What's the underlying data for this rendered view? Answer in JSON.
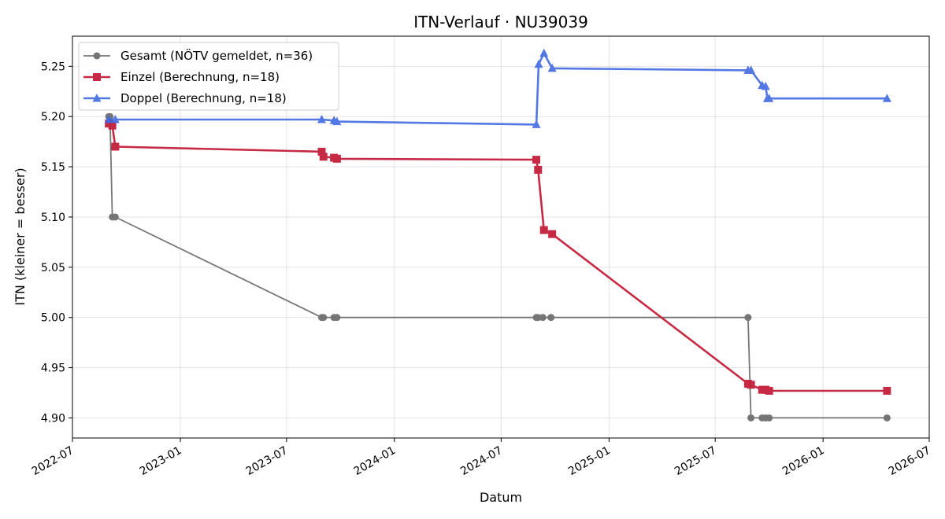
{
  "chart_data": {
    "type": "line",
    "title": "ITN-Verlauf · NU39039",
    "xlabel": "Datum",
    "ylabel": "ITN  (kleiner = besser)",
    "x_type": "date",
    "xlim": [
      "2022-07-01",
      "2026-07-01"
    ],
    "ylim": [
      4.88,
      5.28
    ],
    "x_ticks": [
      "2022-07",
      "2023-01",
      "2023-07",
      "2024-01",
      "2024-07",
      "2025-01",
      "2025-07",
      "2026-01",
      "2026-07"
    ],
    "x_tick_dates": [
      "2022-07-01",
      "2023-01-01",
      "2023-07-01",
      "2024-01-01",
      "2024-07-01",
      "2025-01-01",
      "2025-07-01",
      "2026-01-01",
      "2026-07-01"
    ],
    "y_ticks": [
      4.9,
      4.95,
      5.0,
      5.05,
      5.1,
      5.15,
      5.2,
      5.25
    ],
    "y_tick_labels": [
      "4.90",
      "4.95",
      "5.00",
      "5.05",
      "5.10",
      "5.15",
      "5.20",
      "5.25"
    ],
    "grid": true,
    "legend_position": "top-left",
    "series": [
      {
        "name": "Gesamt (NÖTV gemeldet, n=36)",
        "color": "#555555",
        "marker": "circle",
        "line_width": 1.8,
        "opacity": 0.8,
        "points": [
          {
            "x": "2022-09-01",
            "y": 5.2
          },
          {
            "x": "2022-09-03",
            "y": 5.2
          },
          {
            "x": "2022-09-07",
            "y": 5.1
          },
          {
            "x": "2022-09-12",
            "y": 5.1
          },
          {
            "x": "2023-08-30",
            "y": 5.0
          },
          {
            "x": "2023-09-02",
            "y": 5.0
          },
          {
            "x": "2023-09-20",
            "y": 5.0
          },
          {
            "x": "2023-09-25",
            "y": 5.0
          },
          {
            "x": "2024-08-30",
            "y": 5.0
          },
          {
            "x": "2024-09-02",
            "y": 5.0
          },
          {
            "x": "2024-09-10",
            "y": 5.0
          },
          {
            "x": "2024-09-24",
            "y": 5.0
          },
          {
            "x": "2025-08-26",
            "y": 5.0
          },
          {
            "x": "2025-08-31",
            "y": 4.9
          },
          {
            "x": "2025-09-19",
            "y": 4.9
          },
          {
            "x": "2025-09-25",
            "y": 4.9
          },
          {
            "x": "2025-10-01",
            "y": 4.9
          },
          {
            "x": "2026-04-20",
            "y": 4.9
          }
        ]
      },
      {
        "name": "Einzel (Berechnung, n=18)",
        "color": "#c41e3a",
        "marker": "square",
        "line_width": 2.6,
        "opacity": 0.95,
        "points": [
          {
            "x": "2022-09-01",
            "y": 5.193
          },
          {
            "x": "2022-09-07",
            "y": 5.191
          },
          {
            "x": "2022-09-12",
            "y": 5.17
          },
          {
            "x": "2023-08-30",
            "y": 5.165
          },
          {
            "x": "2023-09-02",
            "y": 5.16
          },
          {
            "x": "2023-09-20",
            "y": 5.159
          },
          {
            "x": "2023-09-25",
            "y": 5.158
          },
          {
            "x": "2024-08-30",
            "y": 5.157
          },
          {
            "x": "2024-09-02",
            "y": 5.147
          },
          {
            "x": "2024-09-12",
            "y": 5.087
          },
          {
            "x": "2024-09-26",
            "y": 5.083
          },
          {
            "x": "2025-08-26",
            "y": 4.934
          },
          {
            "x": "2025-08-31",
            "y": 4.933
          },
          {
            "x": "2025-09-19",
            "y": 4.928
          },
          {
            "x": "2025-09-25",
            "y": 4.928
          },
          {
            "x": "2025-10-01",
            "y": 4.927
          },
          {
            "x": "2026-04-20",
            "y": 4.927
          }
        ]
      },
      {
        "name": "Doppel (Berechnung, n=18)",
        "color": "#4169e1",
        "marker": "triangle",
        "line_width": 2.6,
        "opacity": 0.9,
        "points": [
          {
            "x": "2022-09-01",
            "y": 5.197
          },
          {
            "x": "2022-09-12",
            "y": 5.197
          },
          {
            "x": "2023-08-30",
            "y": 5.197
          },
          {
            "x": "2023-09-20",
            "y": 5.196
          },
          {
            "x": "2023-09-25",
            "y": 5.195
          },
          {
            "x": "2024-08-30",
            "y": 5.192
          },
          {
            "x": "2024-09-03",
            "y": 5.252
          },
          {
            "x": "2024-09-12",
            "y": 5.263
          },
          {
            "x": "2024-09-26",
            "y": 5.248
          },
          {
            "x": "2025-08-26",
            "y": 5.246
          },
          {
            "x": "2025-08-31",
            "y": 5.246
          },
          {
            "x": "2025-09-19",
            "y": 5.231
          },
          {
            "x": "2025-09-25",
            "y": 5.23
          },
          {
            "x": "2025-09-28",
            "y": 5.218
          },
          {
            "x": "2025-10-01",
            "y": 5.218
          },
          {
            "x": "2026-04-20",
            "y": 5.218
          }
        ]
      }
    ]
  }
}
